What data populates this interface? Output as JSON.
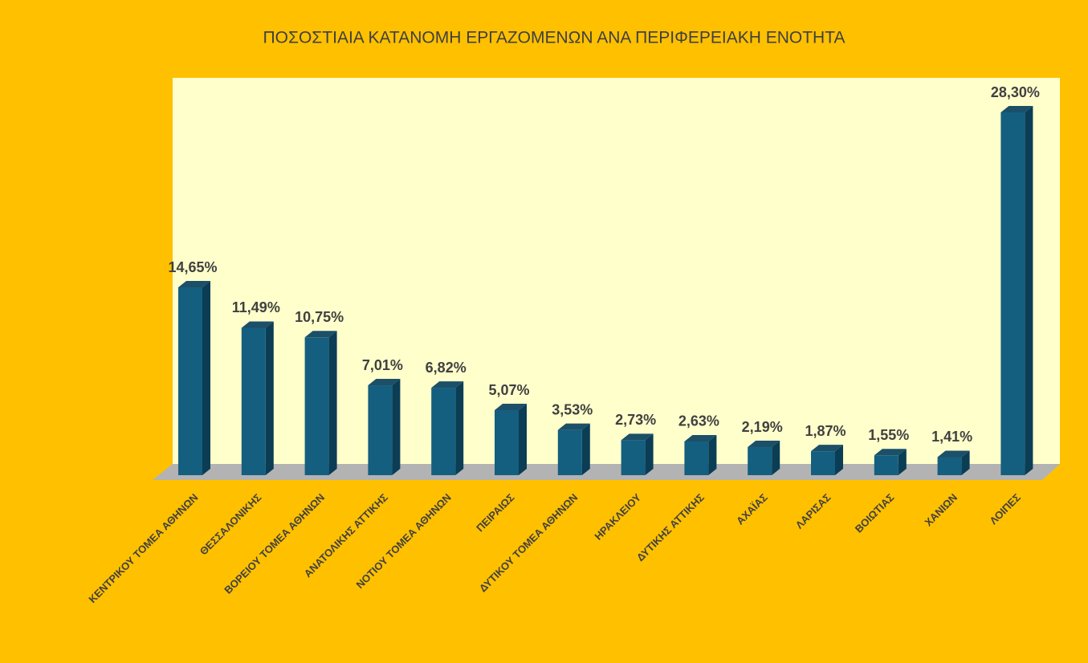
{
  "chart_data": {
    "type": "bar",
    "title": "ΠΟΣΟΣΤΙΑΙΑ ΚΑΤΑΝΟΜΗ ΕΡΓΑΖΟΜΕΝΩΝ ΑΝΑ ΠΕΡΙΦΕΡΕΙΑΚΗ ΕΝΟΤΗΤΑ",
    "categories": [
      "ΚΕΝΤΡΙΚΟΥ ΤΟΜΕΑ ΑΘΗΝΩΝ",
      "ΘΕΣΣΑΛΟΝΙΚΗΣ",
      "ΒΟΡΕΙΟΥ ΤΟΜΕΑ ΑΘΗΝΩΝ",
      "ΑΝΑΤΟΛΙΚΗΣ ΑΤΤΙΚΗΣ",
      "ΝΟΤΙΟΥ ΤΟΜΕΑ ΑΘΗΝΩΝ",
      "ΠΕΙΡΑΙΩΣ",
      "ΔΥΤΙΚΟΥ ΤΟΜΕΑ ΑΘΗΝΩΝ",
      "ΗΡΑΚΛΕΙΟΥ",
      "ΔΥΤΙΚΗΣ ΑΤΤΙΚΗΣ",
      "ΑΧΑΪΑΣ",
      "ΛΑΡΙΣΑΣ",
      "ΒΟΙΩΤΙΑΣ",
      "ΧΑΝΙΩΝ",
      "ΛΟΙΠΕΣ"
    ],
    "values": [
      14.65,
      11.49,
      10.75,
      7.01,
      6.82,
      5.07,
      3.53,
      2.73,
      2.63,
      2.19,
      1.87,
      1.55,
      1.41,
      28.3
    ],
    "value_labels": [
      "14,65%",
      "11,49%",
      "10,75%",
      "7,01%",
      "6,82%",
      "5,07%",
      "3,53%",
      "2,73%",
      "2,63%",
      "2,19%",
      "1,87%",
      "1,55%",
      "1,41%",
      "28,30%"
    ],
    "color": "#145f7f"
  }
}
